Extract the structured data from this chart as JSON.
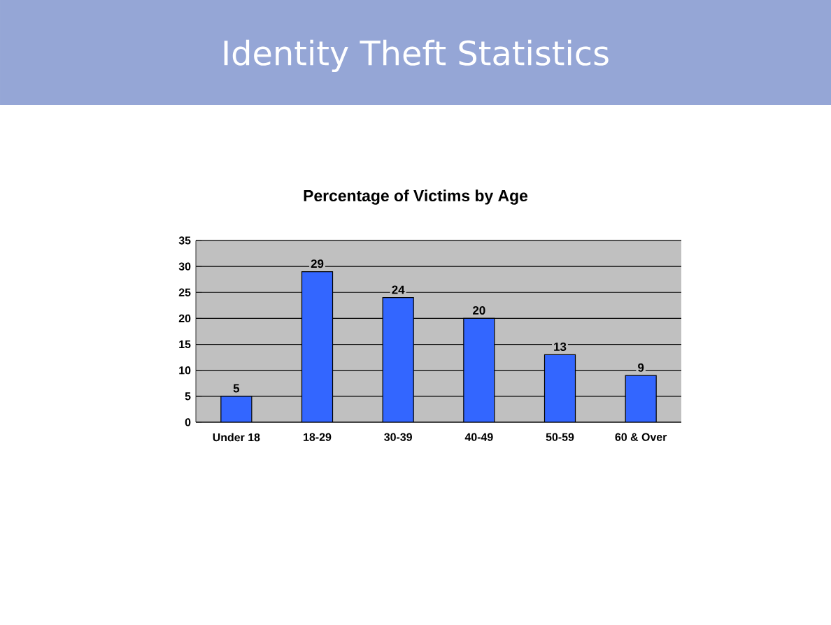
{
  "chart_data": {
    "type": "bar",
    "title": "Identity Theft Statistics",
    "subtitle": "Percentage of Victims by Age",
    "categories": [
      "Under 18",
      "18-29",
      "30-39",
      "40-49",
      "50-59",
      "60 & Over"
    ],
    "values": [
      5,
      29,
      24,
      20,
      13,
      9
    ],
    "color": "#3366ff",
    "ylim": [
      0,
      35
    ],
    "yticks": [
      0,
      5,
      10,
      15,
      20,
      25,
      30,
      35
    ],
    "grid": "y",
    "data_labels": true
  }
}
